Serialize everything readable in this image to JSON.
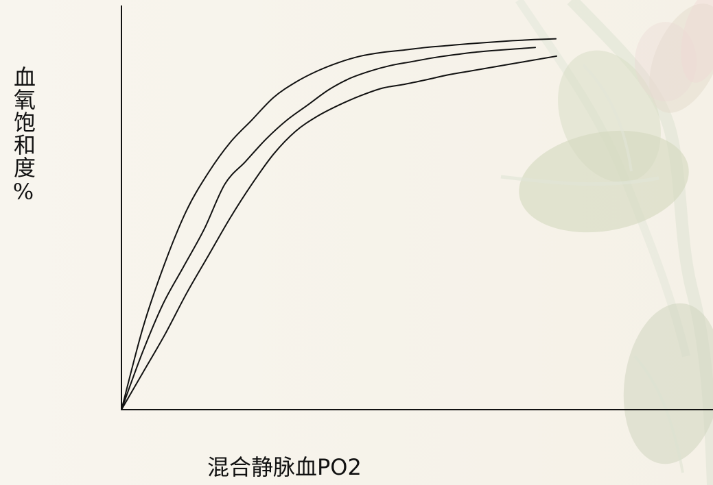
{
  "chart_data": {
    "type": "line",
    "title": "",
    "xlabel": "混合静脉血PO2",
    "ylabel": "血氧饱和度%",
    "grid": false,
    "legend": false,
    "xlim": [
      0,
      100
    ],
    "ylim": [
      0,
      100
    ],
    "series": [
      {
        "color": "#111111",
        "x": [
          0,
          5,
          10,
          15,
          20,
          25,
          30,
          35,
          40,
          45,
          50,
          55,
          60,
          65,
          70,
          75,
          80,
          85,
          90,
          95,
          100
        ],
        "y": [
          0,
          22,
          39,
          53,
          63,
          71,
          77,
          83,
          87,
          90,
          92.3,
          94,
          95,
          95.6,
          96.3,
          96.8,
          97.3,
          97.7,
          98.1,
          98.4,
          98.6
        ]
      },
      {
        "color": "#111111",
        "x": [
          0,
          5,
          10,
          15,
          20,
          25,
          30,
          35,
          40,
          45,
          50,
          55,
          60,
          65,
          70,
          75,
          80,
          85,
          90,
          95,
          100
        ],
        "y": [
          0,
          15,
          28,
          38,
          48,
          60,
          66,
          72,
          77,
          81,
          85,
          88,
          90,
          91.5,
          92.5,
          93.5,
          94.3,
          95,
          95.5,
          95.9,
          96.3
        ]
      },
      {
        "color": "#111111",
        "x": [
          0,
          5,
          10,
          15,
          20,
          25,
          30,
          35,
          40,
          45,
          50,
          55,
          60,
          65,
          70,
          75,
          80,
          85,
          90,
          95,
          100
        ],
        "y": [
          0,
          10,
          20,
          31,
          41,
          51,
          60,
          68,
          74,
          78,
          81,
          83.5,
          85.5,
          86.5,
          87.7,
          89,
          90,
          91,
          92,
          93,
          94
        ]
      }
    ]
  }
}
